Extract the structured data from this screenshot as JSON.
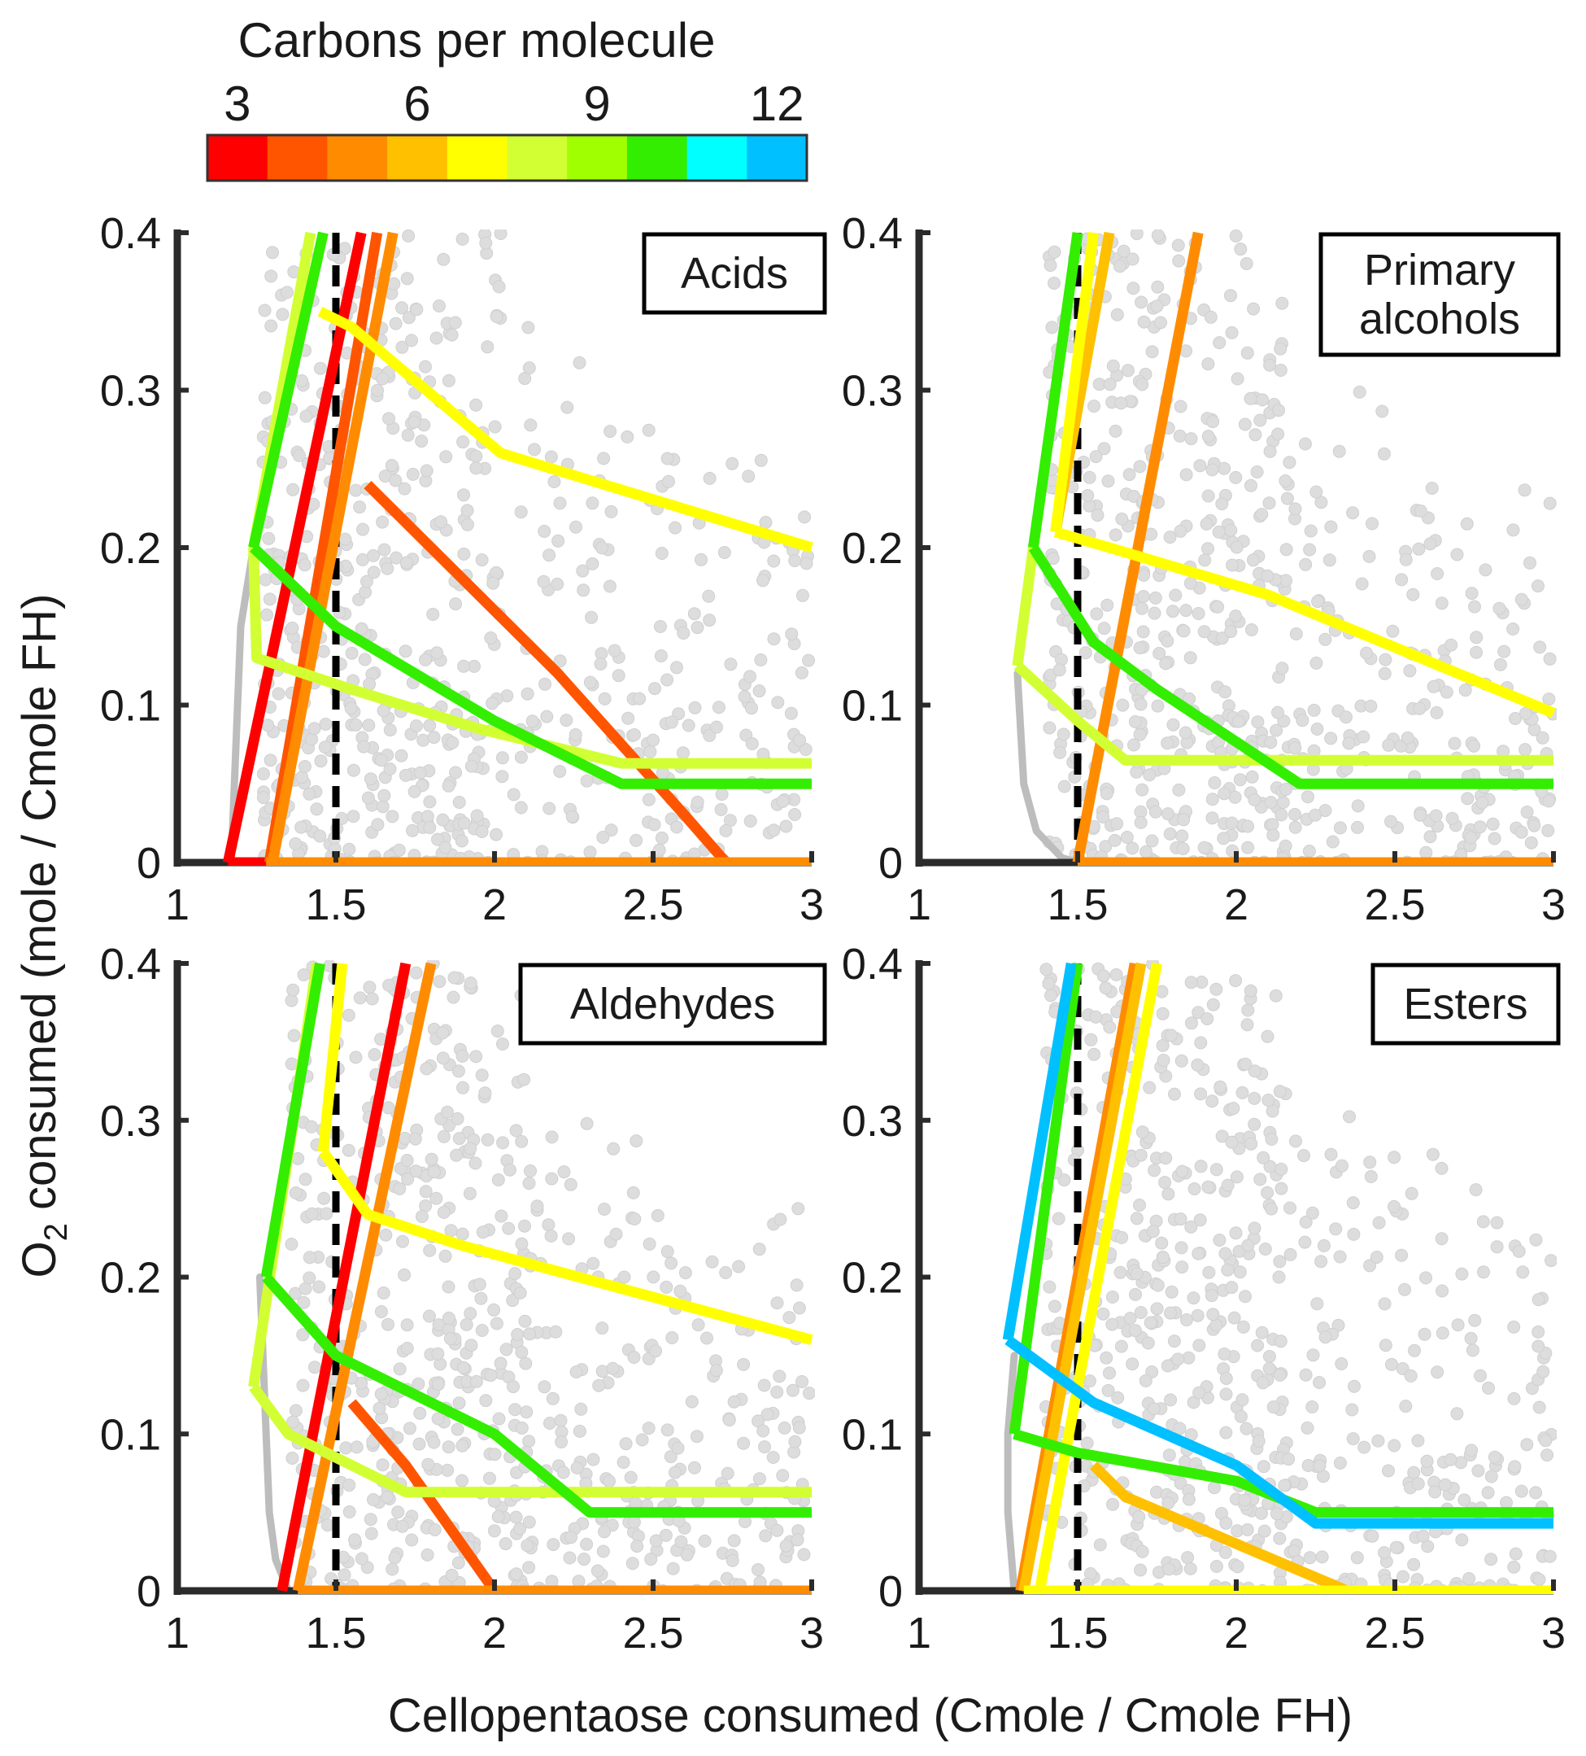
{
  "chart_data": {
    "type": "line",
    "xlabel": "Cellopentaose consumed (Cmole / Cmole FH)",
    "ylabel_prefix": "O",
    "ylabel_sub": "2",
    "ylabel_suffix": " consumed (mole / Cmole FH)",
    "xlim": [
      1,
      3
    ],
    "ylim": [
      0,
      0.4
    ],
    "xticks": [
      1,
      1.5,
      2,
      2.5,
      3
    ],
    "xtick_labels": [
      "1",
      "1.5",
      "2",
      "2.5",
      "3"
    ],
    "yticks": [
      0,
      0.1,
      0.2,
      0.3,
      0.4
    ],
    "ytick_labels": [
      "0",
      "0.1",
      "0.2",
      "0.3",
      "0.4"
    ],
    "colorbar": {
      "title": "Carbons per molecule",
      "tick_labels": [
        "3",
        "6",
        "9",
        "12"
      ],
      "tick_values": [
        3,
        6,
        9,
        12
      ],
      "colors": [
        "#ff0000",
        "#ff5500",
        "#ff8c00",
        "#ffc000",
        "#ffff00",
        "#d2ff33",
        "#a0ff00",
        "#33ee00",
        "#00ffff",
        "#00c0ff"
      ],
      "colors_start_carbon": 3
    },
    "background_cloud_color": "#dddddd",
    "reference_x": 1.5,
    "panels": [
      {
        "title_lines": [
          "Acids"
        ],
        "gray_boundary": [
          [
            1.17,
            0
          ],
          [
            1.18,
            0.05
          ],
          [
            1.19,
            0.1
          ],
          [
            1.2,
            0.15
          ],
          [
            1.24,
            0.2
          ]
        ],
        "series": [
          {
            "carbons": 3,
            "points": [
              [
                1.16,
                0
              ],
              [
                1.58,
                0.4
              ]
            ]
          },
          {
            "carbons": 3,
            "points": [
              [
                1.16,
                0
              ],
              [
                3,
                0
              ]
            ]
          },
          {
            "carbons": 4,
            "points": [
              [
                1.6,
                0.24
              ],
              [
                2.2,
                0.12
              ],
              [
                2.6,
                0.03
              ],
              [
                2.73,
                0
              ]
            ]
          },
          {
            "carbons": 4,
            "points": [
              [
                1.29,
                0
              ],
              [
                1.63,
                0.4
              ]
            ]
          },
          {
            "carbons": 5,
            "points": [
              [
                1.3,
                0
              ],
              [
                1.68,
                0.4
              ]
            ]
          },
          {
            "carbons": 5,
            "points": [
              [
                1.28,
                0
              ],
              [
                3,
                0
              ]
            ]
          },
          {
            "carbons": 7,
            "points": [
              [
                1.45,
                0.35
              ],
              [
                1.55,
                0.34
              ],
              [
                2.02,
                0.26
              ],
              [
                3,
                0.2
              ]
            ]
          },
          {
            "carbons": 8,
            "points": [
              [
                1.24,
                0.2
              ],
              [
                1.25,
                0.13
              ],
              [
                1.55,
                0.11
              ],
              [
                1.95,
                0.085
              ],
              [
                2.4,
                0.063
              ],
              [
                3,
                0.063
              ]
            ]
          },
          {
            "carbons": 8,
            "points": [
              [
                1.24,
                0.2
              ],
              [
                1.42,
                0.4
              ]
            ]
          },
          {
            "carbons": 10,
            "points": [
              [
                1.24,
                0.2
              ],
              [
                1.46,
                0.4
              ]
            ]
          },
          {
            "carbons": 10,
            "points": [
              [
                1.24,
                0.2
              ],
              [
                1.5,
                0.15
              ],
              [
                2.0,
                0.09
              ],
              [
                2.4,
                0.05
              ],
              [
                3,
                0.05
              ]
            ]
          }
        ]
      },
      {
        "title_lines": [
          "Primary",
          "alcohols"
        ],
        "gray_boundary": [
          [
            1.31,
            0.12
          ],
          [
            1.33,
            0.05
          ],
          [
            1.37,
            0.02
          ],
          [
            1.45,
            0.003
          ],
          [
            1.5,
            0
          ]
        ],
        "series": [
          {
            "carbons": 5,
            "points": [
              [
                1.5,
                0
              ],
              [
                1.88,
                0.4
              ]
            ]
          },
          {
            "carbons": 5,
            "points": [
              [
                1.5,
                0
              ],
              [
                3,
                0
              ]
            ]
          },
          {
            "carbons": 6,
            "points": [
              [
                1.43,
                0.21
              ],
              [
                1.6,
                0.4
              ]
            ]
          },
          {
            "carbons": 7,
            "points": [
              [
                1.43,
                0.21
              ],
              [
                1.55,
                0.4
              ]
            ]
          },
          {
            "carbons": 7,
            "points": [
              [
                1.43,
                0.21
              ],
              [
                1.6,
                0.2
              ],
              [
                2.1,
                0.17
              ],
              [
                3,
                0.095
              ]
            ]
          },
          {
            "carbons": 8,
            "points": [
              [
                1.31,
                0.125
              ],
              [
                1.5,
                0.09
              ],
              [
                1.65,
                0.065
              ],
              [
                3,
                0.065
              ]
            ]
          },
          {
            "carbons": 8,
            "points": [
              [
                1.31,
                0.125
              ],
              [
                1.36,
                0.2
              ]
            ]
          },
          {
            "carbons": 10,
            "points": [
              [
                1.36,
                0.2
              ],
              [
                1.5,
                0.4
              ]
            ]
          },
          {
            "carbons": 10,
            "points": [
              [
                1.36,
                0.2
              ],
              [
                1.55,
                0.14
              ],
              [
                1.75,
                0.11
              ],
              [
                2.2,
                0.05
              ],
              [
                3,
                0.05
              ]
            ]
          }
        ]
      },
      {
        "title_lines": [
          "Aldehydes"
        ],
        "gray_boundary": [
          [
            1.26,
            0.2
          ],
          [
            1.27,
            0.15
          ],
          [
            1.28,
            0.1
          ],
          [
            1.29,
            0.05
          ],
          [
            1.31,
            0.02
          ],
          [
            1.35,
            0
          ]
        ],
        "series": [
          {
            "carbons": 3,
            "points": [
              [
                1.33,
                0
              ],
              [
                1.72,
                0.4
              ]
            ]
          },
          {
            "carbons": 4,
            "points": [
              [
                1.55,
                0.12
              ],
              [
                1.72,
                0.08
              ],
              [
                2.0,
                0
              ]
            ]
          },
          {
            "carbons": 5,
            "points": [
              [
                1.38,
                0
              ],
              [
                1.8,
                0.4
              ]
            ]
          },
          {
            "carbons": 5,
            "points": [
              [
                1.38,
                0
              ],
              [
                3,
                0
              ]
            ]
          },
          {
            "carbons": 7,
            "points": [
              [
                1.46,
                0.28
              ],
              [
                1.6,
                0.24
              ],
              [
                1.9,
                0.22
              ],
              [
                3,
                0.16
              ]
            ]
          },
          {
            "carbons": 7,
            "points": [
              [
                1.46,
                0.28
              ],
              [
                1.52,
                0.4
              ]
            ]
          },
          {
            "carbons": 8,
            "points": [
              [
                1.24,
                0.13
              ],
              [
                1.35,
                0.1
              ],
              [
                1.55,
                0.08
              ],
              [
                1.72,
                0.063
              ],
              [
                3,
                0.063
              ]
            ]
          },
          {
            "carbons": 8,
            "points": [
              [
                1.24,
                0.13
              ],
              [
                1.44,
                0.4
              ]
            ]
          },
          {
            "carbons": 10,
            "points": [
              [
                1.28,
                0.2
              ],
              [
                1.45,
                0.4
              ]
            ]
          },
          {
            "carbons": 10,
            "points": [
              [
                1.28,
                0.2
              ],
              [
                1.5,
                0.15
              ],
              [
                2.0,
                0.1
              ],
              [
                2.3,
                0.05
              ],
              [
                3,
                0.05
              ]
            ]
          }
        ]
      },
      {
        "title_lines": [
          "Esters"
        ],
        "gray_boundary": [
          [
            1.3,
            0.15
          ],
          [
            1.28,
            0.1
          ],
          [
            1.28,
            0.05
          ],
          [
            1.3,
            0
          ]
        ],
        "series": [
          {
            "carbons": 5,
            "points": [
              [
                1.32,
                0
              ],
              [
                1.68,
                0.4
              ]
            ]
          },
          {
            "carbons": 6,
            "points": [
              [
                1.55,
                0.08
              ],
              [
                1.65,
                0.06
              ],
              [
                2.0,
                0.03
              ],
              [
                2.35,
                0
              ]
            ]
          },
          {
            "carbons": 6,
            "points": [
              [
                1.33,
                0
              ],
              [
                1.7,
                0.4
              ]
            ]
          },
          {
            "carbons": 7,
            "points": [
              [
                1.38,
                0
              ],
              [
                1.75,
                0.4
              ]
            ]
          },
          {
            "carbons": 7,
            "points": [
              [
                1.33,
                0
              ],
              [
                3,
                0
              ]
            ]
          },
          {
            "carbons": 10,
            "points": [
              [
                1.3,
                0.1
              ],
              [
                1.5,
                0.4
              ]
            ]
          },
          {
            "carbons": 10,
            "points": [
              [
                1.3,
                0.1
              ],
              [
                1.5,
                0.088
              ],
              [
                2.0,
                0.07
              ],
              [
                2.25,
                0.05
              ],
              [
                3,
                0.05
              ]
            ]
          },
          {
            "carbons": 12,
            "points": [
              [
                1.28,
                0.16
              ],
              [
                1.48,
                0.4
              ]
            ]
          },
          {
            "carbons": 12,
            "points": [
              [
                1.28,
                0.16
              ],
              [
                1.55,
                0.12
              ],
              [
                2.0,
                0.08
              ],
              [
                2.25,
                0.043
              ],
              [
                3,
                0.043
              ]
            ]
          }
        ]
      }
    ]
  }
}
